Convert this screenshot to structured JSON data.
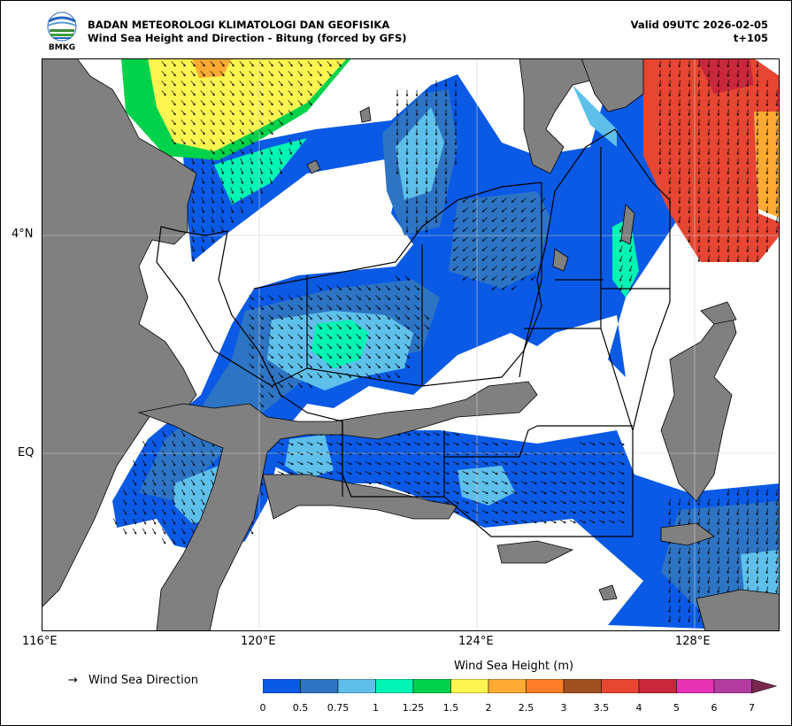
{
  "header": {
    "org_name": "BADAN METEOROLOGI KLIMATOLOGI DAN GEOFISIKA",
    "product_title": "Wind Sea Height and Direction - Bitung (forced by GFS)",
    "valid_time": "Valid 09UTC 2026-02-05",
    "forecast_step": "t+105",
    "logo_text": "BMKG"
  },
  "map": {
    "region": "Bitung",
    "lon_range": [
      116,
      129.5
    ],
    "lat_range": [
      -2.0,
      6.5
    ],
    "x_ticks": [
      "116°E",
      "120°E",
      "124°E",
      "128°E"
    ],
    "y_ticks": [
      "4°N",
      "EQ"
    ],
    "colors": {
      "land": "#808080",
      "sea_background": "#ffffff",
      "grid": "#d0d0d0",
      "boundary": "#000000"
    }
  },
  "legend": {
    "arrow_symbol": "→",
    "arrow_label": "Wind Sea Direction"
  },
  "colorbar": {
    "title": "Wind Sea Height (m)",
    "ticks": [
      "0",
      "0.5",
      "0.75",
      "1",
      "1.25",
      "1.5",
      "2",
      "2.5",
      "3",
      "3.5",
      "4",
      "5",
      "6",
      "7"
    ],
    "colors": [
      "#0a5ae6",
      "#2e74c4",
      "#5ec0ea",
      "#00f5b4",
      "#00d24b",
      "#fff550",
      "#ffaa32",
      "#ff7d28",
      "#a0501e",
      "#e64632",
      "#c8283a",
      "#e633b4",
      "#b43ca0",
      "#782850"
    ]
  }
}
